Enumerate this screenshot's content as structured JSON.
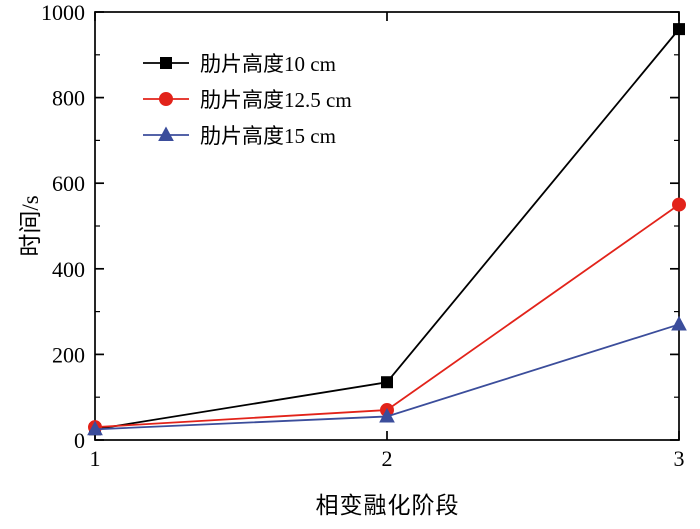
{
  "chart_data": {
    "type": "line",
    "x": [
      1,
      2,
      3
    ],
    "xlim": [
      1,
      3
    ],
    "ylim": [
      0,
      1000
    ],
    "xticks": [
      1,
      2,
      3
    ],
    "yticks": [
      0,
      200,
      400,
      600,
      800,
      1000
    ],
    "y_minor_step": 100,
    "xlabel": "相变融化阶段",
    "ylabel": "时间/s",
    "grid": false,
    "legend_position": "upper-left-inside",
    "frame_color": "#000000",
    "series": [
      {
        "name": "肋片高度10 cm",
        "marker": "square",
        "color": "#000000",
        "values": [
          25,
          135,
          960
        ]
      },
      {
        "name": "肋片高度12.5 cm",
        "marker": "circle",
        "color": "#e2231a",
        "values": [
          30,
          70,
          550
        ]
      },
      {
        "name": "肋片高度15 cm",
        "marker": "triangle-up",
        "color": "#3b4d9b",
        "values": [
          25,
          55,
          270
        ]
      }
    ]
  }
}
